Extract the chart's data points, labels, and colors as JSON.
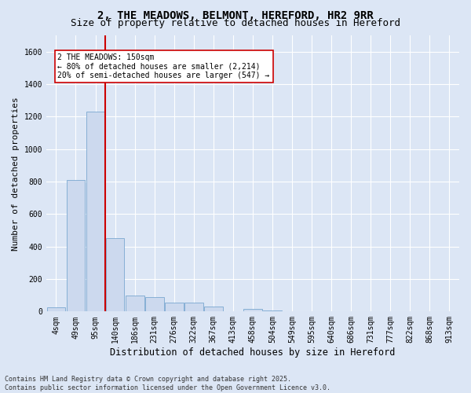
{
  "title": "2, THE MEADOWS, BELMONT, HEREFORD, HR2 9RR",
  "subtitle": "Size of property relative to detached houses in Hereford",
  "xlabel": "Distribution of detached houses by size in Hereford",
  "ylabel": "Number of detached properties",
  "bar_labels": [
    "4sqm",
    "49sqm",
    "95sqm",
    "140sqm",
    "186sqm",
    "231sqm",
    "276sqm",
    "322sqm",
    "367sqm",
    "413sqm",
    "458sqm",
    "504sqm",
    "549sqm",
    "595sqm",
    "640sqm",
    "686sqm",
    "731sqm",
    "777sqm",
    "822sqm",
    "868sqm",
    "913sqm"
  ],
  "bar_values": [
    28,
    810,
    1230,
    450,
    100,
    90,
    55,
    55,
    30,
    0,
    15,
    5,
    0,
    0,
    0,
    0,
    0,
    0,
    0,
    0,
    0
  ],
  "bar_color": "#ccd9ee",
  "bar_edge_color": "#7aa8d0",
  "ylim_max": 1700,
  "yticks": [
    0,
    200,
    400,
    600,
    800,
    1000,
    1200,
    1400,
    1600
  ],
  "vline_x": 2.5,
  "vline_color": "#cc0000",
  "annotation_text": "2 THE MEADOWS: 150sqm\n← 80% of detached houses are smaller (2,214)\n20% of semi-detached houses are larger (547) →",
  "annotation_box_facecolor": "#ffffff",
  "annotation_box_edgecolor": "#cc0000",
  "background_color": "#dce6f5",
  "plot_bg_color": "#dce6f5",
  "footer_text": "Contains HM Land Registry data © Crown copyright and database right 2025.\nContains public sector information licensed under the Open Government Licence v3.0.",
  "title_fontsize": 10,
  "subtitle_fontsize": 9,
  "xlabel_fontsize": 8.5,
  "ylabel_fontsize": 8,
  "tick_fontsize": 7,
  "annotation_fontsize": 7,
  "footer_fontsize": 6
}
